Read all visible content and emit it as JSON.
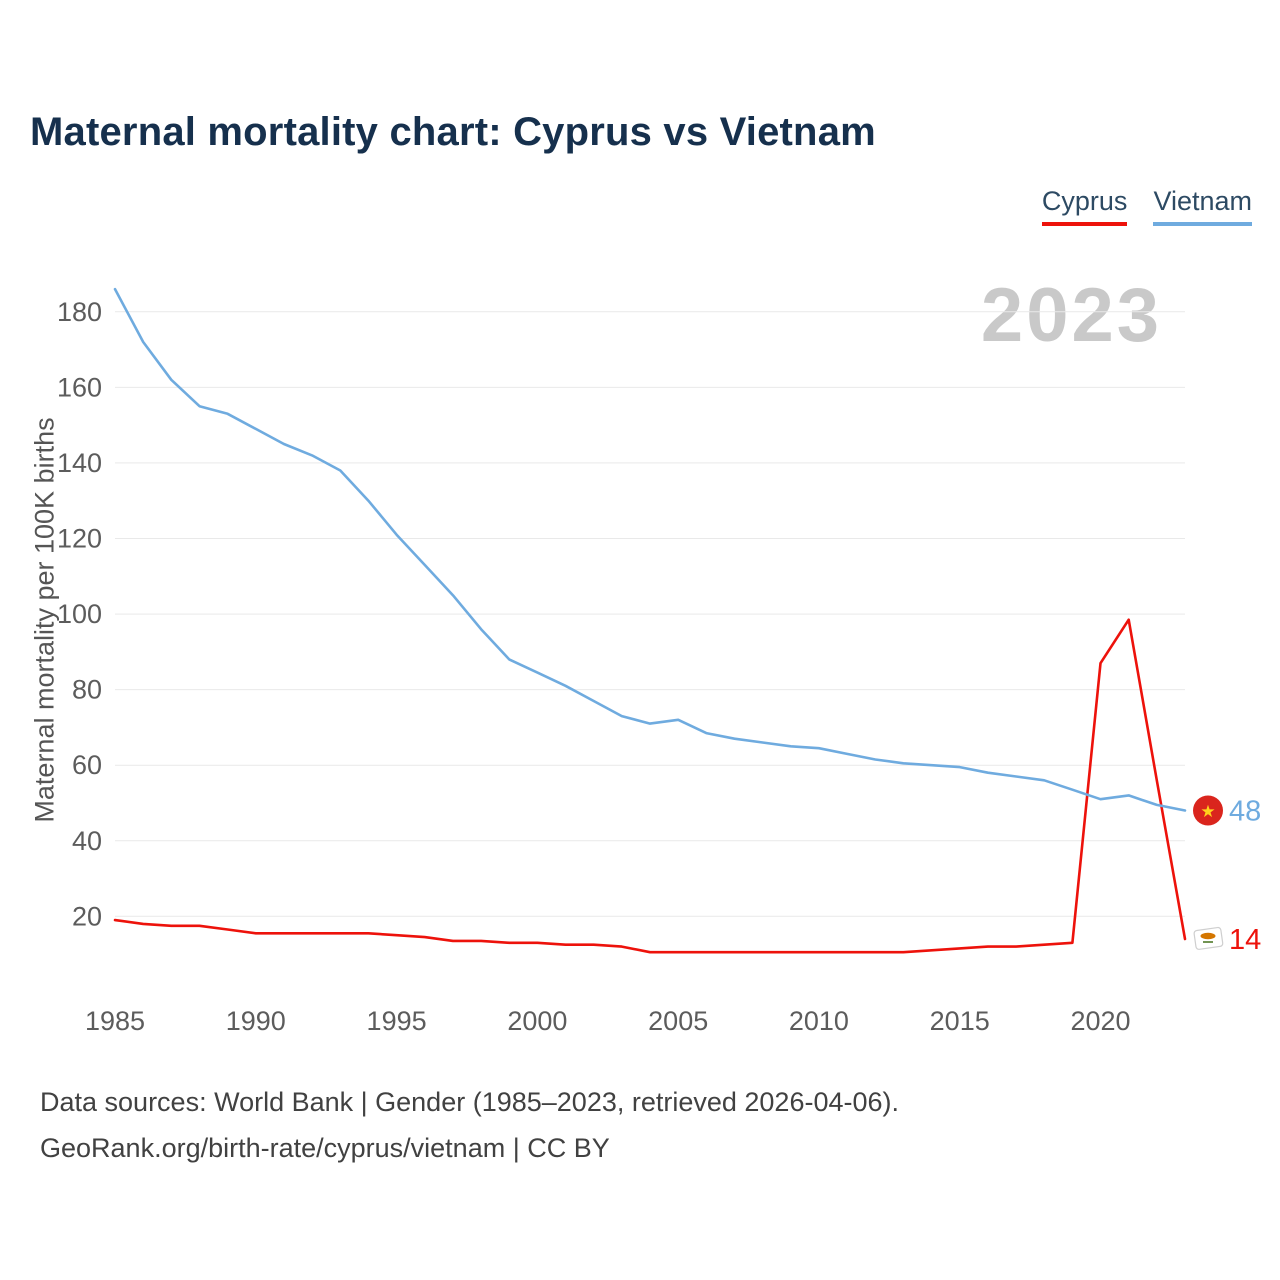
{
  "title": "Maternal mortality chart: Cyprus vs Vietnam",
  "watermark": "2023",
  "ylabel": "Maternal mortality per 100K births",
  "legend": [
    {
      "label": "Cyprus",
      "color": "#ed120b"
    },
    {
      "label": "Vietnam",
      "color": "#6fabdf"
    }
  ],
  "footer": {
    "line1": "Data sources: World Bank | Gender (1985–2023, retrieved 2026-04-06).",
    "line2": "GeoRank.org/birth-rate/cyprus/vietnam | CC BY"
  },
  "flags": {
    "vietnam": {
      "bg": "#da251d",
      "star": "#ffd21d"
    },
    "cyprus": {
      "bg": "#ffffff",
      "border": "#cfcfcf",
      "island": "#d47600",
      "branches": "#4f7a28"
    }
  },
  "chart_data": {
    "type": "line",
    "title": "Maternal mortality chart: Cyprus vs Vietnam",
    "xlabel": "",
    "ylabel": "Maternal mortality per 100K births",
    "x": [
      1985,
      1986,
      1987,
      1988,
      1989,
      1990,
      1991,
      1992,
      1993,
      1994,
      1995,
      1996,
      1997,
      1998,
      1999,
      2000,
      2001,
      2002,
      2003,
      2004,
      2005,
      2006,
      2007,
      2008,
      2009,
      2010,
      2011,
      2012,
      2013,
      2014,
      2015,
      2016,
      2017,
      2018,
      2019,
      2020,
      2021,
      2022,
      2023
    ],
    "xticks": [
      1985,
      1990,
      1995,
      2000,
      2005,
      2010,
      2015,
      2020
    ],
    "yticks": [
      20,
      40,
      60,
      80,
      100,
      120,
      140,
      160,
      180
    ],
    "ylim": [
      5,
      190
    ],
    "grid": true,
    "legend_position": "top-right",
    "series": [
      {
        "name": "Cyprus",
        "color": "#ed120b",
        "flag": "cyprus",
        "end_label": "14",
        "values": [
          19,
          18,
          17.5,
          17.5,
          16.5,
          15.5,
          15.5,
          15.5,
          15.5,
          15.5,
          15,
          14.5,
          13.5,
          13.5,
          13,
          13,
          12.5,
          12.5,
          12,
          10.5,
          10.5,
          10.5,
          10.5,
          10.5,
          10.5,
          10.5,
          10.5,
          10.5,
          10.5,
          11,
          11.5,
          12,
          12,
          12.5,
          13,
          87,
          98.5,
          56,
          14
        ]
      },
      {
        "name": "Vietnam",
        "color": "#6fabdf",
        "flag": "vietnam",
        "end_label": "48",
        "values": [
          186,
          172,
          162,
          155,
          153,
          149,
          145,
          142,
          138,
          130,
          121,
          113,
          105,
          96,
          88,
          84.5,
          81,
          77,
          73,
          71,
          72,
          68.5,
          67,
          66,
          65,
          64.5,
          63,
          61.5,
          60.5,
          60,
          59.5,
          58,
          57,
          56,
          53.5,
          51,
          52,
          49.5,
          48
        ]
      }
    ]
  }
}
